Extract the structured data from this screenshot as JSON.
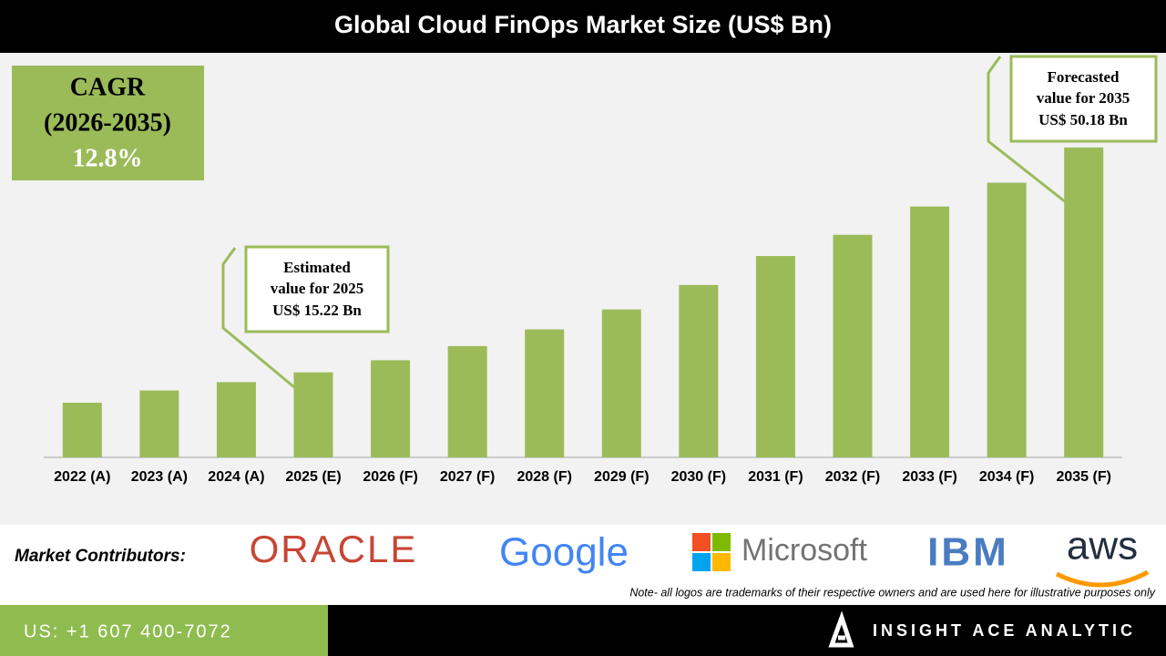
{
  "chart_data": {
    "type": "bar",
    "title": "Global Cloud FinOps Market Size (US$ Bn)",
    "categories": [
      "2022 (A)",
      "2023 (A)",
      "2024 (A)",
      "2025 (E)",
      "2026 (F)",
      "2027 (F)",
      "2028 (F)",
      "2029 (F)",
      "2030 (F)",
      "2031 (F)",
      "2032 (F)",
      "2033 (F)",
      "2034 (F)",
      "2035 (F)"
    ],
    "values": [
      10.5,
      12.4,
      13.7,
      15.22,
      17.1,
      19.3,
      21.9,
      25.0,
      28.8,
      33.3,
      36.6,
      41.0,
      44.7,
      50.18
    ],
    "color": "#9bbb59",
    "ylim": [
      2,
      52
    ],
    "annotations": [
      [
        "Estimated",
        "value for 2025",
        "US$ 15.22 Bn"
      ],
      [
        "Forecasted",
        "value for 2035",
        "US$ 50.18 Bn"
      ]
    ],
    "cagr": [
      "CAGR",
      "(2026-2035)",
      "12.8%"
    ]
  },
  "footer": {
    "contributors_label": "Market Contributors:",
    "logos": [
      "ORACLE",
      "Google",
      "Microsoft",
      "IBM",
      "aws"
    ],
    "note": "Note- all logos are trademarks of their respective owners and are used here for illustrative purposes only",
    "phone": "US: +1 607 400-7072",
    "brand": "INSIGHT ACE ANALYTIC"
  }
}
